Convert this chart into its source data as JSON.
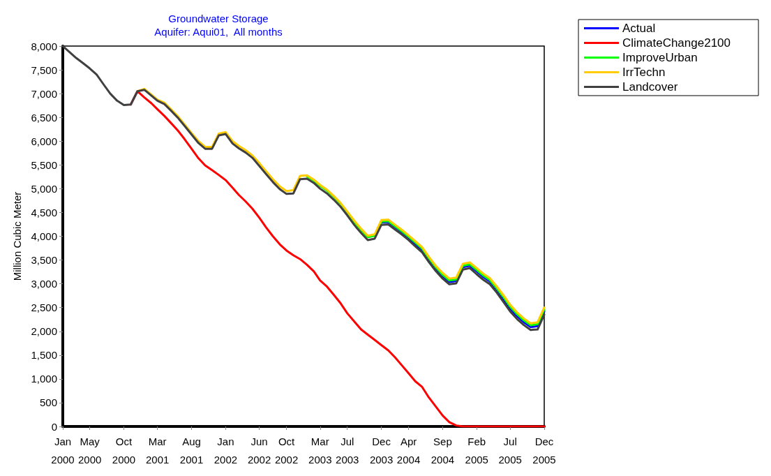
{
  "chart_data": {
    "type": "line",
    "title": "Groundwater Storage",
    "subtitle": "Aquifer: Aqui01,  All months",
    "ylabel": "Million Cubic Meter",
    "x": [
      "2000-01",
      "2000-02",
      "2000-03",
      "2000-04",
      "2000-05",
      "2000-06",
      "2000-07",
      "2000-08",
      "2000-09",
      "2000-10",
      "2000-11",
      "2000-12",
      "2001-01",
      "2001-02",
      "2001-03",
      "2001-04",
      "2001-05",
      "2001-06",
      "2001-07",
      "2001-08",
      "2001-09",
      "2001-10",
      "2001-11",
      "2001-12",
      "2002-01",
      "2002-02",
      "2002-03",
      "2002-04",
      "2002-05",
      "2002-06",
      "2002-07",
      "2002-08",
      "2002-09",
      "2002-10",
      "2002-11",
      "2002-12",
      "2003-01",
      "2003-02",
      "2003-03",
      "2003-04",
      "2003-05",
      "2003-06",
      "2003-07",
      "2003-08",
      "2003-09",
      "2003-10",
      "2003-11",
      "2003-12",
      "2004-01",
      "2004-02",
      "2004-03",
      "2004-04",
      "2004-05",
      "2004-06",
      "2004-07",
      "2004-08",
      "2004-09",
      "2004-10",
      "2004-11",
      "2004-12",
      "2005-01",
      "2005-02",
      "2005-03",
      "2005-04",
      "2005-05",
      "2005-06",
      "2005-07",
      "2005-08",
      "2005-09",
      "2005-10",
      "2005-11",
      "2005-12"
    ],
    "series": [
      {
        "name": "Actual",
        "color": "#0000ff",
        "values": [
          null,
          null,
          null,
          null,
          null,
          null,
          null,
          null,
          null,
          null,
          null,
          null,
          null,
          null,
          null,
          null,
          null,
          null,
          null,
          null,
          null,
          null,
          null,
          null,
          null,
          null,
          null,
          null,
          null,
          null,
          null,
          null,
          null,
          null,
          null,
          null,
          null,
          null,
          null,
          null,
          null,
          null,
          null,
          null,
          null,
          null,
          null,
          4290,
          4300,
          4190,
          4090,
          3970,
          3840,
          3710,
          3510,
          3320,
          3160,
          3040,
          3060,
          3350,
          3380,
          3260,
          3150,
          3050,
          2880,
          2680,
          2480,
          2320,
          2190,
          2090,
          2110,
          2420
        ]
      },
      {
        "name": "ClimateChange2100",
        "color": "#ff0000",
        "values": [
          null,
          null,
          null,
          null,
          null,
          null,
          null,
          null,
          null,
          null,
          6770,
          7050,
          6920,
          6800,
          6670,
          6530,
          6380,
          6220,
          6040,
          5840,
          5640,
          5490,
          5390,
          5290,
          5180,
          5020,
          4870,
          4730,
          4580,
          4390,
          4190,
          4000,
          3830,
          3700,
          3600,
          3520,
          3400,
          3260,
          3070,
          2940,
          2770,
          2590,
          2380,
          2210,
          2040,
          1930,
          1820,
          1710,
          1600,
          1450,
          1290,
          1120,
          950,
          830,
          610,
          420,
          230,
          90,
          20,
          0,
          0,
          0,
          0,
          0,
          0,
          0,
          0,
          0,
          0,
          0,
          0,
          0
        ]
      },
      {
        "name": "ImproveUrban",
        "color": "#00ff00",
        "values": [
          null,
          null,
          null,
          null,
          null,
          null,
          null,
          null,
          null,
          null,
          null,
          null,
          null,
          null,
          null,
          null,
          null,
          null,
          null,
          null,
          null,
          null,
          null,
          null,
          null,
          null,
          null,
          null,
          null,
          null,
          null,
          null,
          null,
          null,
          null,
          null,
          5260,
          5170,
          5060,
          4960,
          4830,
          4680,
          4500,
          4300,
          4130,
          3980,
          4010,
          4310,
          4320,
          4210,
          4110,
          3990,
          3870,
          3740,
          3540,
          3350,
          3190,
          3070,
          3090,
          3380,
          3410,
          3290,
          3180,
          3080,
          2910,
          2720,
          2520,
          2360,
          2230,
          2130,
          2150,
          2460
        ]
      },
      {
        "name": "IrrTechn",
        "color": "#ffcc00",
        "values": [
          null,
          null,
          null,
          null,
          null,
          null,
          null,
          null,
          null,
          null,
          null,
          7050,
          7100,
          6980,
          6870,
          6810,
          6670,
          6520,
          6350,
          6170,
          6000,
          5880,
          5880,
          6160,
          6190,
          6000,
          5900,
          5810,
          5700,
          5540,
          5370,
          5200,
          5050,
          4950,
          4970,
          5270,
          5280,
          5190,
          5080,
          4980,
          4850,
          4700,
          4520,
          4330,
          4160,
          4010,
          4040,
          4340,
          4350,
          4240,
          4140,
          4020,
          3900,
          3770,
          3570,
          3380,
          3230,
          3110,
          3130,
          3420,
          3450,
          3330,
          3220,
          3120,
          2950,
          2760,
          2560,
          2400,
          2270,
          2170,
          2190,
          2500
        ]
      },
      {
        "name": "Landcover",
        "color": "#404040",
        "values": [
          8000,
          7870,
          7750,
          7640,
          7530,
          7400,
          7200,
          7000,
          6850,
          6760,
          6770,
          7050,
          7080,
          6960,
          6850,
          6780,
          6640,
          6490,
          6320,
          6140,
          5960,
          5840,
          5840,
          6120,
          6150,
          5950,
          5850,
          5760,
          5650,
          5480,
          5310,
          5140,
          4990,
          4890,
          4900,
          5200,
          5210,
          5120,
          5000,
          4900,
          4770,
          4620,
          4440,
          4240,
          4070,
          3920,
          3950,
          4240,
          4250,
          4140,
          4040,
          3920,
          3790,
          3660,
          3460,
          3270,
          3110,
          2990,
          3010,
          3300,
          3330,
          3200,
          3090,
          2990,
          2820,
          2620,
          2420,
          2260,
          2130,
          2030,
          2040,
          2350
        ]
      }
    ],
    "xlim": [
      "2000-01",
      "2005-12"
    ],
    "xticks": [
      {
        "value": "2000-01",
        "label": "Jan 2000"
      },
      {
        "value": "2000-05",
        "label": "May 2000"
      },
      {
        "value": "2000-10",
        "label": "Oct 2000"
      },
      {
        "value": "2001-03",
        "label": "Mar 2001"
      },
      {
        "value": "2001-08",
        "label": "Aug 2001"
      },
      {
        "value": "2002-01",
        "label": "Jan 2002"
      },
      {
        "value": "2002-06",
        "label": "Jun 2002"
      },
      {
        "value": "2002-10",
        "label": "Oct 2002"
      },
      {
        "value": "2003-03",
        "label": "Mar 2003"
      },
      {
        "value": "2003-07",
        "label": "Jul 2003"
      },
      {
        "value": "2003-12",
        "label": "Dec 2003"
      },
      {
        "value": "2004-04",
        "label": "Apr 2004"
      },
      {
        "value": "2004-09",
        "label": "Sep 2004"
      },
      {
        "value": "2005-02",
        "label": "Feb 2005"
      },
      {
        "value": "2005-07",
        "label": "Jul 2005"
      },
      {
        "value": "2005-12",
        "label": "Dec 2005"
      }
    ],
    "ylim": [
      0,
      8000
    ],
    "yticks": [
      0,
      500,
      {
        "value": 1000,
        "label": "1,000"
      },
      {
        "value": 1500,
        "label": "1,500"
      },
      {
        "value": 2000,
        "label": "2,000"
      },
      {
        "value": 2500,
        "label": "2,500"
      },
      {
        "value": 3000,
        "label": "3,000"
      },
      {
        "value": 3500,
        "label": "3,500"
      },
      {
        "value": 4000,
        "label": "4,000"
      },
      {
        "value": 4500,
        "label": "4,500"
      },
      {
        "value": 5000,
        "label": "5,000"
      },
      {
        "value": 5500,
        "label": "5,500"
      },
      {
        "value": 6000,
        "label": "6,000"
      },
      {
        "value": 6500,
        "label": "6,500"
      },
      {
        "value": 7000,
        "label": "7,000"
      },
      {
        "value": 7500,
        "label": "7,500"
      },
      {
        "value": 8000,
        "label": "8,000"
      }
    ],
    "grid": false,
    "legend": "top right",
    "marker": "none",
    "line_style": "solid"
  }
}
